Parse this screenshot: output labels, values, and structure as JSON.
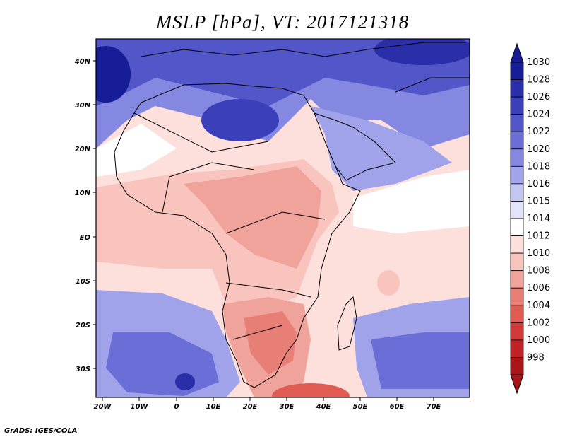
{
  "title": "MSLP [hPa], VT: 2017121318",
  "footer": "GrADS: IGES/COLA",
  "map": {
    "lon_labels": [
      "20W",
      "10W",
      "0",
      "10E",
      "20E",
      "30E",
      "40E",
      "50E",
      "60E",
      "70E"
    ],
    "lat_labels": [
      "40N",
      "30N",
      "20N",
      "10N",
      "EQ",
      "10S",
      "20S",
      "30S"
    ]
  },
  "colorbar": {
    "levels": [
      "1030",
      "1028",
      "1026",
      "1024",
      "1022",
      "1020",
      "1018",
      "1016",
      "1015",
      "1014",
      "1012",
      "1010",
      "1008",
      "1006",
      "1004",
      "1002",
      "1000",
      "998"
    ],
    "colors": [
      "#161d96",
      "#2a2ea8",
      "#3c3fba",
      "#5256c8",
      "#6a6ed6",
      "#8588e0",
      "#a0a3ea",
      "#c5c7f3",
      "#e3e4fa",
      "#ffffff",
      "#fde0dc",
      "#f8c4bd",
      "#f0a39b",
      "#e87f77",
      "#e05b52",
      "#d4393a",
      "#bf2125",
      "#a81417"
    ]
  },
  "colors": {
    "low": "#e05b52",
    "high": "#2a2ea8",
    "neutral": "#ffffff"
  }
}
